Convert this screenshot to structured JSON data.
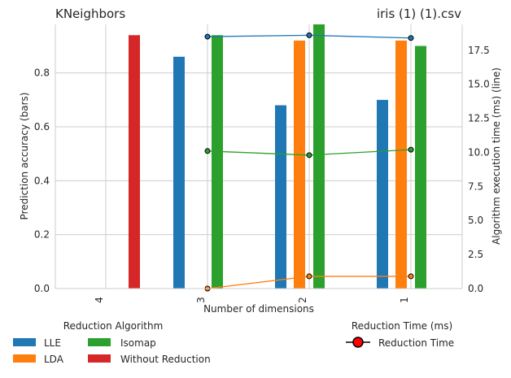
{
  "chart_data": {
    "type": "bar",
    "title": "KNeighbors",
    "subtitle": "iris (1) (1).csv",
    "xlabel": "Number of dimensions",
    "ylabel": "Prediction accuracy (bars)",
    "y2label": "Algorithm execution time (ms) (line)",
    "categories": [
      "4",
      "3",
      "2",
      "1"
    ],
    "ylim": [
      0,
      0.98
    ],
    "y2lim": [
      0,
      19.4
    ],
    "yticks": [
      "0.0",
      "0.2",
      "0.4",
      "0.6",
      "0.8"
    ],
    "y2ticks": [
      "0.0",
      "2.5",
      "5.0",
      "7.5",
      "10.0",
      "12.5",
      "15.0",
      "17.5"
    ],
    "grid": true,
    "series": [
      {
        "name": "LLE",
        "color": "#1f77b4",
        "values": [
          null,
          0.86,
          0.68,
          0.7
        ]
      },
      {
        "name": "LDA",
        "color": "#ff7f0e",
        "values": [
          null,
          null,
          0.92,
          0.92
        ]
      },
      {
        "name": "Isomap",
        "color": "#2ca02c",
        "values": [
          null,
          0.94,
          0.98,
          0.9
        ]
      },
      {
        "name": "Without Reduction",
        "color": "#d62728",
        "values": [
          0.94,
          null,
          null,
          null
        ]
      }
    ],
    "lines": [
      {
        "series": "LLE",
        "color": "#1f77b4",
        "x": [
          "3",
          "2",
          "1"
        ],
        "values": [
          18.5,
          18.6,
          18.4
        ]
      },
      {
        "series": "Isomap",
        "color": "#2ca02c",
        "x": [
          "3",
          "2",
          "1"
        ],
        "values": [
          10.1,
          9.8,
          10.2
        ]
      },
      {
        "series": "LDA",
        "color": "#ff7f0e",
        "x": [
          "3",
          "2",
          "1"
        ],
        "values": [
          0.0,
          0.9,
          0.9
        ]
      }
    ],
    "legend_left": {
      "title": "Reduction Algorithm",
      "items": [
        "LLE",
        "LDA",
        "Isomap",
        "Without Reduction"
      ],
      "placement": "bottom-left"
    },
    "legend_right": {
      "title": "Reduction Time (ms)",
      "item": "Reduction Time",
      "placement": "bottom-right"
    }
  }
}
